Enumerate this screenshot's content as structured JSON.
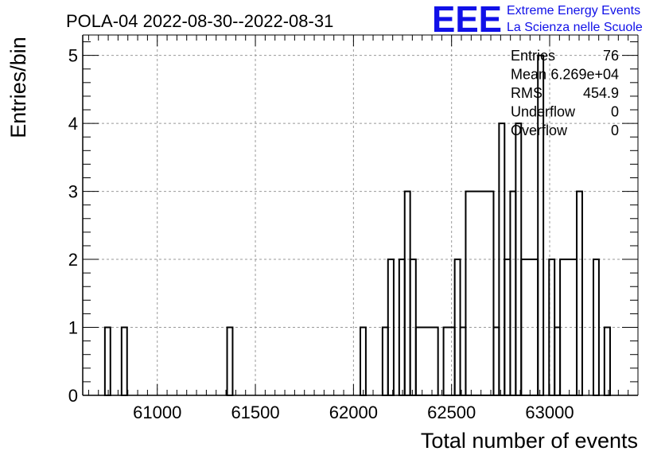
{
  "chart_data": {
    "type": "bar",
    "title": "POLA-04 2022-08-30--2022-08-31",
    "xlabel": "Total number of events",
    "ylabel": "Entries/bin",
    "xlim": [
      60620,
      63450
    ],
    "ylim": [
      0,
      5.3
    ],
    "bin_width": 28.3,
    "grid": true,
    "x_ticks": [
      61000,
      61500,
      62000,
      62500,
      63000
    ],
    "x_tick_labels": [
      "61000",
      "61500",
      "62000",
      "62500",
      "63000"
    ],
    "y_ticks": [
      0,
      1,
      2,
      3,
      4,
      5
    ],
    "y_tick_labels": [
      "0",
      "1",
      "2",
      "3",
      "4",
      "5"
    ],
    "bins": [
      {
        "x0": 60733,
        "x1": 60761,
        "count": 1
      },
      {
        "x0": 60818,
        "x1": 60846,
        "count": 1
      },
      {
        "x0": 61356,
        "x1": 61384,
        "count": 1
      },
      {
        "x0": 62035,
        "x1": 62063,
        "count": 1
      },
      {
        "x0": 62148,
        "x1": 62176,
        "count": 1
      },
      {
        "x0": 62176,
        "x1": 62205,
        "count": 2
      },
      {
        "x0": 62233,
        "x1": 62261,
        "count": 2
      },
      {
        "x0": 62261,
        "x1": 62289,
        "count": 3
      },
      {
        "x0": 62289,
        "x1": 62318,
        "count": 2
      },
      {
        "x0": 62318,
        "x1": 62431,
        "count": 1
      },
      {
        "x0": 62459,
        "x1": 62516,
        "count": 1
      },
      {
        "x0": 62516,
        "x1": 62544,
        "count": 2
      },
      {
        "x0": 62544,
        "x1": 62572,
        "count": 1
      },
      {
        "x0": 62572,
        "x1": 62714,
        "count": 3
      },
      {
        "x0": 62714,
        "x1": 62742,
        "count": 1
      },
      {
        "x0": 62742,
        "x1": 62770,
        "count": 4
      },
      {
        "x0": 62770,
        "x1": 62799,
        "count": 2
      },
      {
        "x0": 62799,
        "x1": 62827,
        "count": 3
      },
      {
        "x0": 62827,
        "x1": 62855,
        "count": 4
      },
      {
        "x0": 62855,
        "x1": 62940,
        "count": 2
      },
      {
        "x0": 62940,
        "x1": 62968,
        "count": 5
      },
      {
        "x0": 62997,
        "x1": 63025,
        "count": 2
      },
      {
        "x0": 63025,
        "x1": 63053,
        "count": 1
      },
      {
        "x0": 63053,
        "x1": 63138,
        "count": 2
      },
      {
        "x0": 63138,
        "x1": 63166,
        "count": 3
      },
      {
        "x0": 63223,
        "x1": 63251,
        "count": 2
      },
      {
        "x0": 63279,
        "x1": 63308,
        "count": 1
      }
    ]
  },
  "stats": [
    {
      "label": "Entries",
      "value": "76"
    },
    {
      "label": "Mean",
      "value": "6.269e+04"
    },
    {
      "label": "RMS",
      "value": "454.9"
    },
    {
      "label": "Underflow",
      "value": "0"
    },
    {
      "label": "Overflow",
      "value": "0"
    }
  ],
  "logo": {
    "mark": "EEE",
    "line1": "Extreme Energy Events",
    "line2": "La Scienza nelle Scuole",
    "color": "#1010e8"
  }
}
